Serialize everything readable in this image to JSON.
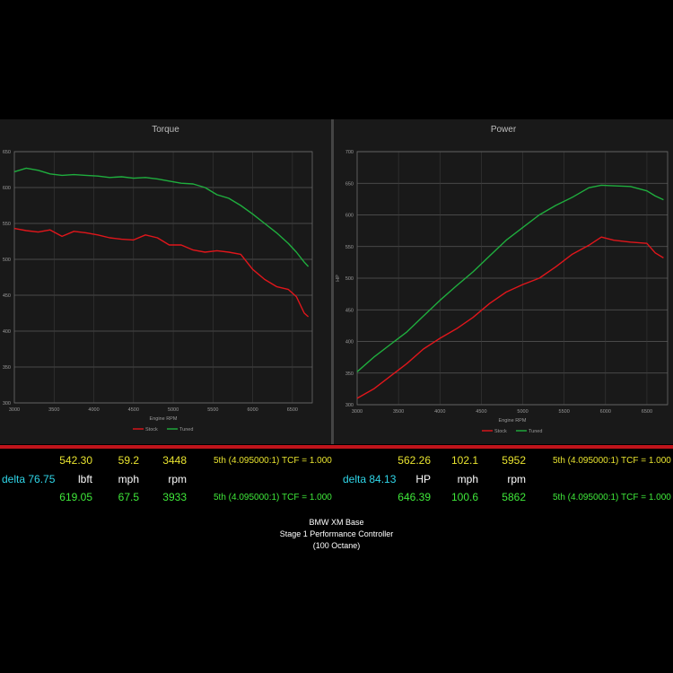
{
  "chart_data": [
    {
      "type": "line",
      "title": "Torque",
      "xlabel": "Engine RPM",
      "ylabel": "",
      "xlim": [
        3000,
        6750
      ],
      "ylim": [
        300,
        650
      ],
      "xticks": [
        3000,
        3500,
        4000,
        4500,
        5000,
        5500,
        6000,
        6500
      ],
      "yticks": [
        300,
        350,
        400,
        450,
        500,
        550,
        600,
        650
      ],
      "grid": true,
      "legend": "bottom-center",
      "series": [
        {
          "name": "Stock",
          "color": "#e0161b",
          "x": [
            3000,
            3150,
            3300,
            3450,
            3600,
            3750,
            3900,
            4050,
            4200,
            4350,
            4500,
            4650,
            4800,
            4950,
            5100,
            5250,
            5400,
            5550,
            5700,
            5850,
            6000,
            6150,
            6300,
            6450,
            6550,
            6650,
            6700
          ],
          "y": [
            543,
            540,
            538,
            541,
            532,
            539,
            537,
            534,
            530,
            528,
            527,
            534,
            530,
            520,
            520,
            513,
            510,
            512,
            510,
            507,
            486,
            472,
            462,
            458,
            448,
            425,
            420
          ]
        },
        {
          "name": "Tuned",
          "color": "#1fae3e",
          "x": [
            3000,
            3150,
            3300,
            3450,
            3600,
            3750,
            3900,
            4050,
            4200,
            4350,
            4500,
            4650,
            4800,
            4950,
            5100,
            5250,
            5400,
            5550,
            5700,
            5850,
            6000,
            6150,
            6300,
            6450,
            6550,
            6650,
            6700
          ],
          "y": [
            622,
            627,
            624,
            619,
            617,
            618,
            617,
            616,
            614,
            615,
            613,
            614,
            612,
            609,
            606,
            605,
            600,
            590,
            585,
            575,
            563,
            550,
            537,
            522,
            510,
            496,
            490
          ]
        }
      ]
    },
    {
      "type": "line",
      "title": "Power",
      "xlabel": "Engine RPM",
      "ylabel": "HP",
      "xlim": [
        3000,
        6750
      ],
      "ylim": [
        300,
        700
      ],
      "xticks": [
        3000,
        3500,
        4000,
        4500,
        5000,
        5500,
        6000,
        6500
      ],
      "yticks": [
        300,
        350,
        400,
        450,
        500,
        550,
        600,
        650,
        700
      ],
      "grid": true,
      "legend": "bottom-center",
      "series": [
        {
          "name": "Stock",
          "color": "#e0161b",
          "x": [
            3000,
            3200,
            3400,
            3600,
            3800,
            4000,
            4200,
            4400,
            4600,
            4800,
            5000,
            5200,
            5400,
            5600,
            5800,
            5950,
            6100,
            6300,
            6500,
            6600,
            6700
          ],
          "y": [
            310,
            325,
            345,
            365,
            388,
            405,
            420,
            438,
            460,
            478,
            490,
            500,
            518,
            538,
            552,
            565,
            560,
            557,
            555,
            540,
            532
          ]
        },
        {
          "name": "Tuned",
          "color": "#1fae3e",
          "x": [
            3000,
            3200,
            3400,
            3600,
            3800,
            4000,
            4200,
            4400,
            4600,
            4800,
            5000,
            5200,
            5400,
            5600,
            5800,
            5950,
            6100,
            6300,
            6500,
            6600,
            6700
          ],
          "y": [
            352,
            375,
            395,
            415,
            440,
            465,
            488,
            510,
            535,
            560,
            580,
            600,
            615,
            628,
            643,
            647,
            646,
            645,
            638,
            630,
            624
          ]
        }
      ]
    }
  ],
  "table": {
    "torque": {
      "stock": {
        "value": "542.30",
        "speed": "59.2",
        "rpm": "3448",
        "gear": "5th (4.095000:1) TCF = 1.000"
      },
      "delta": "delta 76.75",
      "units": {
        "value": "lbft",
        "speed": "mph",
        "rpm": "rpm"
      },
      "tuned": {
        "value": "619.05",
        "speed": "67.5",
        "rpm": "3933",
        "gear": "5th (4.095000:1) TCF = 1.000"
      }
    },
    "power": {
      "stock": {
        "value": "562.26",
        "speed": "102.1",
        "rpm": "5952",
        "gear": "5th (4.095000:1) TCF = 1.000"
      },
      "delta": "delta 84.13",
      "units": {
        "value": "HP",
        "speed": "mph",
        "rpm": "rpm"
      },
      "tuned": {
        "value": "646.39",
        "speed": "100.6",
        "rpm": "5862",
        "gear": "5th (4.095000:1) TCF = 1.000"
      }
    }
  },
  "caption": {
    "line1": "BMW XM Base",
    "line2": "Stage 1 Performance Controller",
    "line3": "(100 Octane)"
  }
}
